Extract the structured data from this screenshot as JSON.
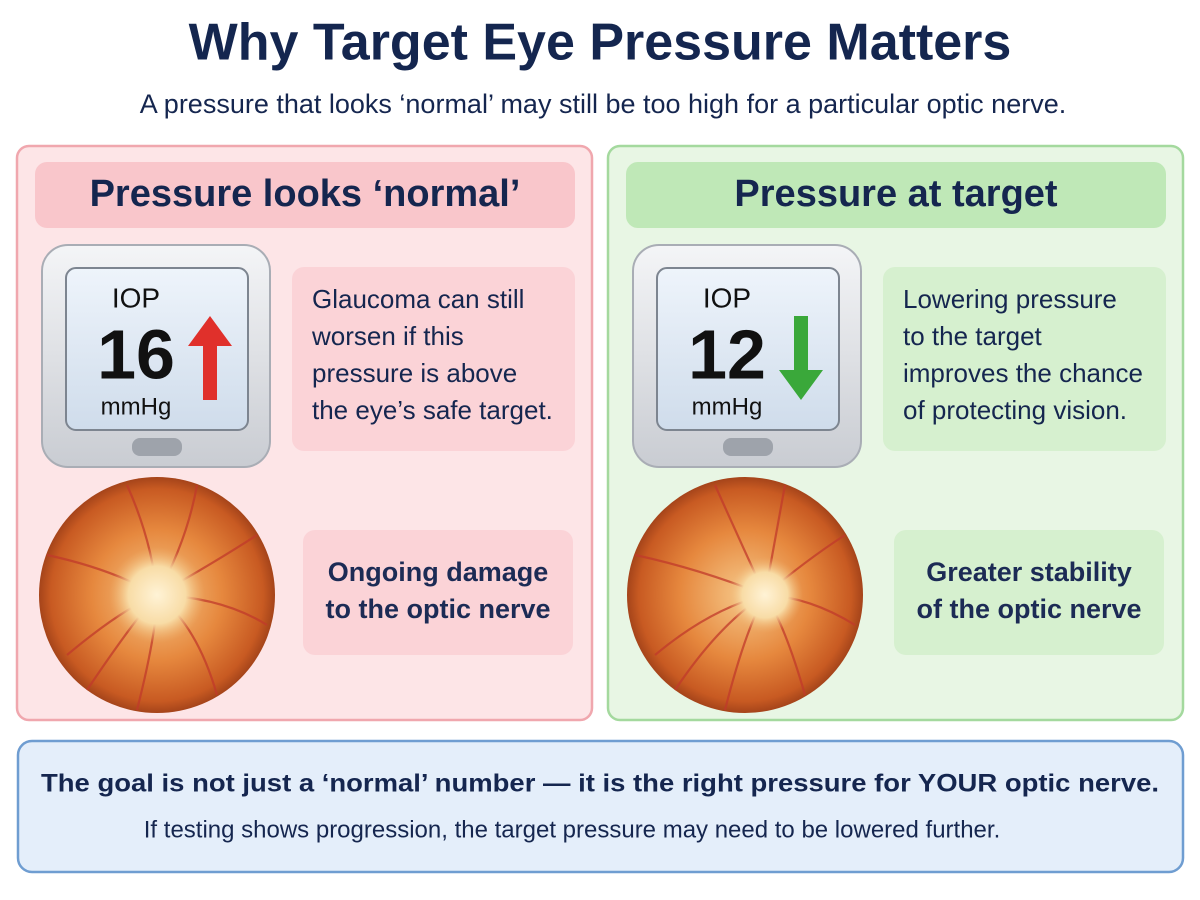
{
  "header": {
    "title": "Why Target Eye Pressure Matters",
    "subtitle": "A pressure that looks ‘normal’ may still be too high for a particular optic nerve."
  },
  "panels": [
    {
      "heading": "Pressure looks ‘normal’",
      "meter": {
        "label": "IOP",
        "value": 16,
        "unit": "mmHg"
      },
      "note": [
        "Glaucoma can still",
        "worsen if this",
        "pressure is above",
        "the eye’s safe target."
      ],
      "outcome": [
        "Ongoing damage",
        "to the optic nerve"
      ]
    },
    {
      "heading": "Pressure at target",
      "meter": {
        "label": "IOP",
        "value": 12,
        "unit": "mmHg"
      },
      "note": [
        "Lowering pressure",
        "to the target",
        "improves the chance",
        "of protecting vision."
      ],
      "outcome": [
        "Greater stability",
        "of the optic nerve"
      ]
    }
  ],
  "footer": {
    "main": "The goal is not just a ‘normal’ number — it is the right pressure for YOUR optic nerve.",
    "sub": "If testing shows progression, the target pressure may need to be lowered further."
  }
}
